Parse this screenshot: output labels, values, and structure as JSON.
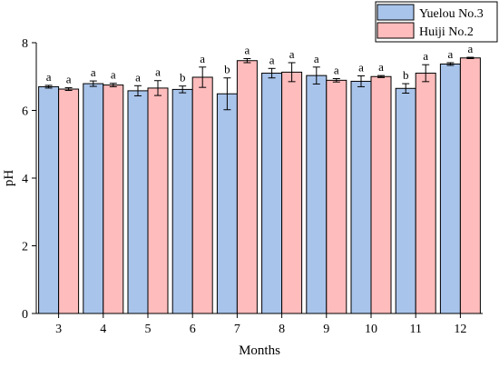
{
  "chart_data": {
    "type": "bar",
    "title": "",
    "xlabel": "Months",
    "ylabel": "pH",
    "ylim": [
      0,
      8
    ],
    "yticks": [
      0,
      2,
      4,
      6,
      8
    ],
    "categories": [
      "3",
      "4",
      "5",
      "6",
      "7",
      "8",
      "9",
      "10",
      "11",
      "12"
    ],
    "legend_position": "top-right",
    "grid": false,
    "series": [
      {
        "name": "Yuelou No.3",
        "color": "#A9C4EB",
        "values": [
          6.7,
          6.79,
          6.58,
          6.62,
          6.49,
          7.1,
          7.03,
          6.86,
          6.65,
          7.37
        ],
        "errors": [
          0.04,
          0.08,
          0.15,
          0.1,
          0.47,
          0.14,
          0.25,
          0.16,
          0.14,
          0.04
        ],
        "labels": [
          "a",
          "a",
          "a",
          "b",
          "b",
          "a",
          "a",
          "a",
          "b",
          "a"
        ]
      },
      {
        "name": "Huiji No.2",
        "color": "#FFBCBC",
        "values": [
          6.63,
          6.75,
          6.66,
          6.98,
          7.47,
          7.13,
          6.89,
          7.0,
          7.1,
          7.55
        ],
        "errors": [
          0.04,
          0.05,
          0.22,
          0.3,
          0.06,
          0.28,
          0.05,
          0.03,
          0.25,
          0.02
        ],
        "labels": [
          "a",
          "a",
          "a",
          "a",
          "a",
          "a",
          "a",
          "a",
          "a",
          "a"
        ]
      }
    ]
  }
}
